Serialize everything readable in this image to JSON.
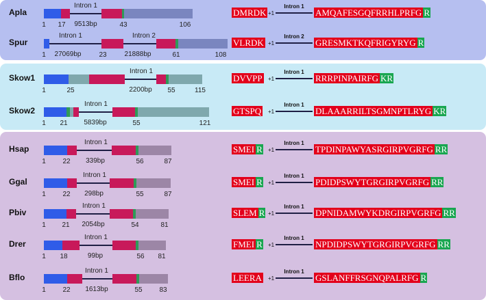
{
  "colors": {
    "panel_echinoderm": "#b6bff0",
    "panel_hemichordate": "#c8eaf6",
    "panel_chordate": "#d5c0e1",
    "exon_blue": "#2f5ce8",
    "exon_red": "#c8195a",
    "exon_green": "#2f9a58",
    "exon_gray_blue": "#7a86bf",
    "exon_gray_teal": "#7fa8ad",
    "exon_gray_purple": "#9c86a6",
    "seq_red": "#e3001b",
    "seq_green": "#19a650"
  },
  "rows": [
    {
      "species": "Apla",
      "genes": {
        "labels": [
          "1",
          "17",
          "9513bp",
          "43",
          "106"
        ],
        "intron_labels": [
          "Intron 1"
        ]
      },
      "alignment": {
        "left": "DMRDK",
        "phase": "+1",
        "intron": "Intron 1",
        "right_red": "AMQAFESGQFRRHLPRFG",
        "right_green": "R",
        "left_green": ""
      }
    },
    {
      "species": "Spur",
      "genes": {
        "labels": [
          "1",
          "27069bp",
          "23",
          "21888bp",
          "61",
          "108"
        ],
        "intron_labels": [
          "Intron 1",
          "Intron 2"
        ]
      },
      "alignment": {
        "left": "VLRDK",
        "phase": "+1",
        "intron": "Intron 2",
        "right_red": "GRESMKTKQFRIGYRYG",
        "right_green": "R",
        "left_green": ""
      }
    },
    {
      "species": "Skow1",
      "genes": {
        "labels": [
          "1",
          "25",
          "2200bp",
          "55",
          "115"
        ],
        "intron_labels": [
          "Intron 1"
        ]
      },
      "alignment": {
        "left": "DVVPP",
        "phase": "+1",
        "intron": "Intron 1",
        "right_red": "RRRPINPAIRFG",
        "right_green": "KR",
        "left_green": ""
      }
    },
    {
      "species": "Skow2",
      "genes": {
        "labels": [
          "1",
          "21",
          "5839bp",
          "55",
          "121"
        ],
        "intron_labels": [
          "Intron 1"
        ]
      },
      "alignment": {
        "left": "GTSPQ",
        "phase": "+1",
        "intron": "Intron 1",
        "right_red": "DLAAARRILTSGMNPTLRYG",
        "right_green": "KR",
        "left_green": ""
      }
    },
    {
      "species": "Hsap",
      "genes": {
        "labels": [
          "1",
          "22",
          "339bp",
          "56",
          "87"
        ],
        "intron_labels": [
          "Intron 1"
        ]
      },
      "alignment": {
        "left": "SMEI",
        "phase": "+1",
        "intron": "Intron 1",
        "right_red": "TPDINPAWYASRGIRPVGRFG",
        "right_green": "RR",
        "left_green": "R"
      }
    },
    {
      "species": "Ggal",
      "genes": {
        "labels": [
          "1",
          "22",
          "298bp",
          "55",
          "87"
        ],
        "intron_labels": [
          "Intron 1"
        ]
      },
      "alignment": {
        "left": "SMEI",
        "phase": "+1",
        "intron": "Intron 1",
        "right_red": "PDIDPSWYTGRGIRPVGRFG",
        "right_green": "RR",
        "left_green": "R"
      }
    },
    {
      "species": "Pbiv",
      "genes": {
        "labels": [
          "1",
          "21",
          "2054bp",
          "54",
          "81"
        ],
        "intron_labels": [
          "Intron 1"
        ]
      },
      "alignment": {
        "left": "SLEM",
        "phase": "+1",
        "intron": "Intron 1",
        "right_red": "DPNIDAMWYKDRGIRPVGRFG",
        "right_green": "RR",
        "left_green": "R"
      }
    },
    {
      "species": "Drer",
      "genes": {
        "labels": [
          "1",
          "18",
          "99bp",
          "56",
          "81"
        ],
        "intron_labels": [
          "Intron 1"
        ]
      },
      "alignment": {
        "left": "FMEI",
        "phase": "+1",
        "intron": "Intron 1",
        "right_red": "NPDIDPSWYTGRGIRPVGRFG",
        "right_green": "RR",
        "left_green": "R"
      }
    },
    {
      "species": "Bflo",
      "genes": {
        "labels": [
          "1",
          "22",
          "1613bp",
          "55",
          "83"
        ],
        "intron_labels": [
          "Intron 1"
        ]
      },
      "alignment": {
        "left": "LEERA",
        "phase": "+1",
        "intron": "Intron 1",
        "right_red": "GSLANFFRSGNQPALRFG",
        "right_green": "R",
        "left_green": ""
      }
    }
  ]
}
